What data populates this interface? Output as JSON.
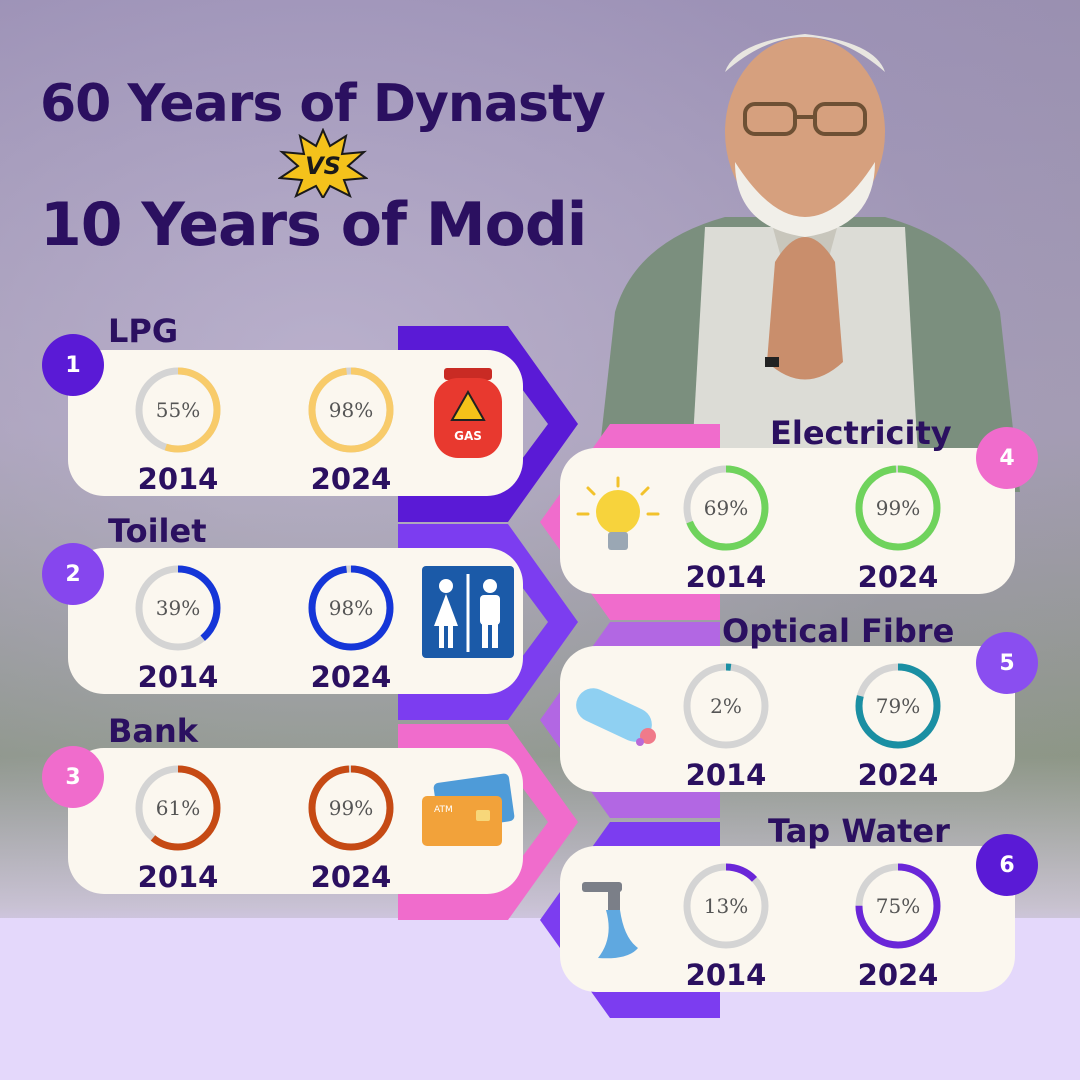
{
  "title": {
    "line1": "60 Years of Dynasty",
    "vs": "VS",
    "line2": "10 Years of Modi"
  },
  "colors": {
    "title": "#2b1060",
    "card": "#fbf7ef",
    "badge_purple": "#5a1ad6",
    "badge_pink": "#f06ccc"
  },
  "icons": [
    "gas-cylinder-icon",
    "toilet-sign-icon",
    "atm-card-icon",
    "light-bulb-icon",
    "optical-fibre-cable-icon",
    "water-tap-icon"
  ],
  "chart_data": {
    "type": "donut",
    "categories": [
      "LPG",
      "Toilet",
      "Bank",
      "Electricity",
      "Optical Fibre",
      "Tap Water"
    ],
    "series": [
      {
        "name": "2014",
        "values": [
          55,
          39,
          61,
          69,
          2,
          13
        ]
      },
      {
        "name": "2024",
        "values": [
          98,
          98,
          99,
          99,
          79,
          75
        ]
      }
    ],
    "value_labels": {
      "2014": [
        "55%",
        "39%",
        "61%",
        "69%",
        "2%",
        "13%"
      ],
      "2024": [
        "98%",
        "98%",
        "99%",
        "99%",
        "79%",
        "75%"
      ]
    },
    "panels": [
      {
        "number": "1",
        "label": "LPG",
        "color": "#f8cb6a",
        "values": [
          55,
          98
        ],
        "labels": [
          "55%",
          "98%"
        ],
        "years": [
          "2014",
          "2024"
        ]
      },
      {
        "number": "2",
        "label": "Toilet",
        "color": "#1536d8",
        "values": [
          39,
          98
        ],
        "labels": [
          "39%",
          "98%"
        ],
        "years": [
          "2014",
          "2024"
        ]
      },
      {
        "number": "3",
        "label": "Bank",
        "color": "#c64a14",
        "values": [
          61,
          99
        ],
        "labels": [
          "61%",
          "99%"
        ],
        "years": [
          "2014",
          "2024"
        ]
      },
      {
        "number": "4",
        "label": "Electricity",
        "color": "#6fd35c",
        "values": [
          69,
          99
        ],
        "labels": [
          "69%",
          "99%"
        ],
        "years": [
          "2014",
          "2024"
        ]
      },
      {
        "number": "5",
        "label": "Optical Fibre",
        "color": "#1a8fa3",
        "values": [
          2,
          79
        ],
        "labels": [
          "2%",
          "79%"
        ],
        "years": [
          "2014",
          "2024"
        ]
      },
      {
        "number": "6",
        "label": "Tap Water",
        "color": "#6a26d8",
        "values": [
          13,
          75
        ],
        "labels": [
          "13%",
          "75%"
        ],
        "years": [
          "2014",
          "2024"
        ]
      }
    ]
  }
}
